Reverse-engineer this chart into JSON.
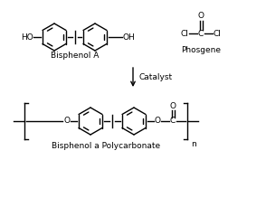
{
  "bg_color": "#ffffff",
  "line_color": "#000000",
  "line_width": 1.0,
  "font_size": 6.5,
  "label_bisphenol_a": "Bisphenol A",
  "label_phosgene": "Phosgene",
  "label_catalyst": "Catalyst",
  "label_product": "Bisphenol a Polycarbonate",
  "label_n": "n",
  "label_HO": "HO",
  "label_OH": "OH",
  "label_Cl_left": "Cl",
  "label_C_phg": "C",
  "label_Cl_right": "Cl",
  "label_O_phg": "O",
  "label_O_left": "O",
  "label_O_right": "O",
  "label_O_carb": "O",
  "label_C_carb": "C"
}
